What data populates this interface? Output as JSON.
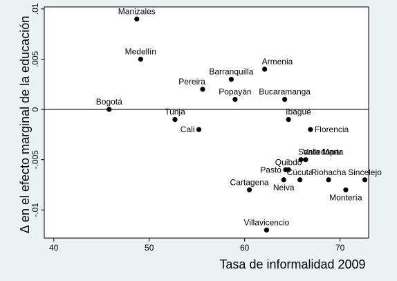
{
  "chart_data": {
    "type": "scatter",
    "title": "",
    "xlabel": "Tasa de informalidad 2009",
    "ylabel": "Δ en el efecto marginal de la educación",
    "xlim": [
      39,
      73
    ],
    "ylim": [
      -0.0128,
      0.0102
    ],
    "x_ticks": [
      {
        "value": 40,
        "label": "40"
      },
      {
        "value": 50,
        "label": "50"
      },
      {
        "value": 60,
        "label": "60"
      },
      {
        "value": 70,
        "label": "70"
      }
    ],
    "y_ticks": [
      {
        "value": 0.01,
        "label": ".01"
      },
      {
        "value": 0.005,
        "label": ".005"
      },
      {
        "value": 0,
        "label": "0"
      },
      {
        "value": -0.005,
        "label": "-.005"
      },
      {
        "value": -0.01,
        "label": "-.01"
      }
    ],
    "reference_line_y": 0,
    "grid": false,
    "points": [
      {
        "label": "Manizales",
        "x": 48.7,
        "y": 0.009,
        "anchor": "middle",
        "pos": "above"
      },
      {
        "label": "Medellín",
        "x": 49.1,
        "y": 0.005,
        "anchor": "middle",
        "pos": "above"
      },
      {
        "label": "Armenia",
        "x": 62.1,
        "y": 0.004,
        "anchor": "start",
        "pos": "above"
      },
      {
        "label": "Barranquilla",
        "x": 58.6,
        "y": 0.003,
        "anchor": "middle",
        "pos": "above"
      },
      {
        "label": "Pereira",
        "x": 55.6,
        "y": 0.002,
        "anchor": "end",
        "pos": "above"
      },
      {
        "label": "Popayán",
        "x": 59.0,
        "y": 0.001,
        "anchor": "middle",
        "pos": "above"
      },
      {
        "label": "Bucaramanga",
        "x": 64.2,
        "y": 0.001,
        "anchor": "middle",
        "pos": "above"
      },
      {
        "label": "Bogotá",
        "x": 45.8,
        "y": 0.0,
        "anchor": "middle",
        "pos": "above"
      },
      {
        "label": "Ibagué",
        "x": 64.6,
        "y": -0.001,
        "anchor": "start",
        "pos": "above"
      },
      {
        "label": "Tunja",
        "x": 52.7,
        "y": -0.001,
        "anchor": "middle",
        "pos": "above"
      },
      {
        "label": "Florencia",
        "x": 66.9,
        "y": -0.002,
        "anchor": "start",
        "pos": "right"
      },
      {
        "label": "Cali",
        "x": 55.2,
        "y": -0.002,
        "anchor": "end",
        "pos": "left"
      },
      {
        "label": "Santa Marta",
        "x": 65.9,
        "y": -0.005,
        "anchor": "start",
        "pos": "above"
      },
      {
        "label": "Valledupar",
        "x": 66.4,
        "y": -0.005,
        "anchor": "start",
        "pos": "above"
      },
      {
        "label": "Pasto",
        "x": 64.3,
        "y": -0.006,
        "anchor": "end",
        "pos": "left"
      },
      {
        "label": "Quibdó",
        "x": 64.6,
        "y": -0.006,
        "anchor": "middle",
        "pos": "above"
      },
      {
        "label": "Cúcuta",
        "x": 65.8,
        "y": -0.007,
        "anchor": "middle",
        "pos": "above"
      },
      {
        "label": "Neiva",
        "x": 64.1,
        "y": -0.007,
        "anchor": "middle",
        "pos": "below"
      },
      {
        "label": "Riohacha",
        "x": 68.8,
        "y": -0.007,
        "anchor": "middle",
        "pos": "above"
      },
      {
        "label": "Sincelejo",
        "x": 72.6,
        "y": -0.007,
        "anchor": "middle",
        "pos": "above"
      },
      {
        "label": "Cartagena",
        "x": 60.5,
        "y": -0.008,
        "anchor": "middle",
        "pos": "above"
      },
      {
        "label": "Montería",
        "x": 70.6,
        "y": -0.008,
        "anchor": "middle",
        "pos": "below"
      },
      {
        "label": "Villavicencio",
        "x": 62.3,
        "y": -0.012,
        "anchor": "middle",
        "pos": "above"
      }
    ]
  }
}
